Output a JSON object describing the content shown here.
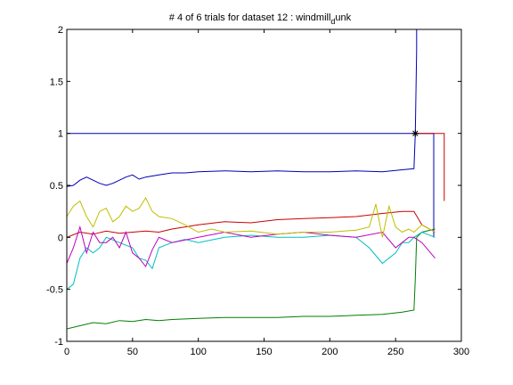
{
  "chart_data": {
    "type": "line",
    "title": "# 4 of 6 trials for dataset 12 : windmill",
    "title_subscript": "d",
    "title_suffix": "unk",
    "xlabel": "",
    "ylabel": "",
    "xlim": [
      0,
      300
    ],
    "ylim": [
      -1,
      2
    ],
    "xticks": [
      0,
      50,
      100,
      150,
      200,
      250,
      300
    ],
    "yticks": [
      -1,
      -0.5,
      0,
      0.5,
      1,
      1.5,
      2
    ],
    "ytick_labels": [
      "-1",
      "-0.5",
      "0",
      "0.5",
      "1",
      "1.5",
      "2"
    ],
    "grid": false,
    "legend": "none",
    "marker": {
      "x": 265,
      "y": 1,
      "symbol": "asterisk",
      "color": "#000000"
    },
    "series": [
      {
        "color": "#0000b3",
        "x": [
          0,
          5,
          10,
          15,
          20,
          25,
          30,
          35,
          40,
          45,
          50,
          55,
          60,
          70,
          80,
          90,
          100,
          120,
          140,
          160,
          180,
          200,
          220,
          240,
          255,
          264,
          265,
          266,
          266
        ],
        "y": [
          0.49,
          0.5,
          0.55,
          0.58,
          0.55,
          0.52,
          0.5,
          0.52,
          0.55,
          0.58,
          0.6,
          0.56,
          0.58,
          0.6,
          0.62,
          0.62,
          0.63,
          0.64,
          0.63,
          0.64,
          0.63,
          0.63,
          0.64,
          0.63,
          0.65,
          0.66,
          1.0,
          1.8,
          2.0
        ]
      },
      {
        "color": "#0000b3",
        "x": [
          0,
          265,
          268,
          272,
          276,
          279,
          279
        ],
        "y": [
          1,
          1,
          1,
          1,
          1,
          1,
          0.0
        ]
      },
      {
        "color": "#cc0000",
        "x": [
          265,
          285,
          287,
          287
        ],
        "y": [
          1,
          1,
          1,
          0.35
        ]
      },
      {
        "color": "#cc0000",
        "x": [
          0,
          10,
          20,
          30,
          40,
          50,
          60,
          70,
          80,
          100,
          120,
          140,
          160,
          180,
          200,
          220,
          240,
          255,
          264,
          270,
          280
        ],
        "y": [
          0.0,
          0.05,
          0.03,
          0.06,
          0.04,
          0.05,
          0.06,
          0.05,
          0.08,
          0.12,
          0.15,
          0.14,
          0.17,
          0.18,
          0.19,
          0.2,
          0.23,
          0.25,
          0.25,
          0.12,
          0.05
        ]
      },
      {
        "color": "#007f00",
        "x": [
          0,
          10,
          20,
          30,
          40,
          50,
          60,
          70,
          80,
          100,
          120,
          140,
          160,
          180,
          200,
          220,
          240,
          255,
          264,
          265,
          266,
          270,
          280
        ],
        "y": [
          -0.88,
          -0.85,
          -0.82,
          -0.83,
          -0.8,
          -0.81,
          -0.79,
          -0.8,
          -0.79,
          -0.78,
          -0.77,
          -0.77,
          -0.77,
          -0.76,
          -0.76,
          -0.75,
          -0.74,
          -0.72,
          -0.7,
          -0.4,
          0.0,
          0.05,
          0.08
        ]
      },
      {
        "color": "#00bfbf",
        "x": [
          0,
          5,
          10,
          15,
          20,
          25,
          30,
          40,
          50,
          55,
          60,
          65,
          70,
          80,
          90,
          100,
          120,
          140,
          160,
          180,
          200,
          220,
          230,
          240,
          250,
          255,
          260,
          264,
          270,
          280
        ],
        "y": [
          -0.5,
          -0.45,
          -0.2,
          -0.1,
          -0.15,
          -0.1,
          0.0,
          -0.05,
          -0.1,
          -0.2,
          -0.22,
          -0.3,
          -0.1,
          -0.05,
          -0.02,
          -0.05,
          0.0,
          0.02,
          0.0,
          0.0,
          0.02,
          0.0,
          -0.1,
          -0.25,
          -0.15,
          -0.05,
          -0.05,
          0.0,
          0.05,
          0.0
        ]
      },
      {
        "color": "#bf00bf",
        "x": [
          0,
          5,
          10,
          15,
          20,
          25,
          30,
          35,
          40,
          45,
          50,
          55,
          60,
          65,
          70,
          80,
          100,
          120,
          140,
          160,
          180,
          200,
          220,
          240,
          250,
          260,
          264,
          270,
          280
        ],
        "y": [
          -0.25,
          -0.1,
          0.1,
          -0.15,
          0.05,
          -0.05,
          -0.05,
          0.0,
          -0.1,
          0.05,
          -0.15,
          -0.2,
          -0.28,
          -0.12,
          0.0,
          -0.05,
          0.0,
          0.05,
          0.0,
          0.03,
          0.05,
          0.02,
          0.0,
          0.05,
          -0.1,
          0.0,
          0.0,
          -0.05,
          -0.2
        ]
      },
      {
        "color": "#bfbf00",
        "x": [
          0,
          5,
          10,
          15,
          20,
          25,
          30,
          35,
          40,
          45,
          50,
          55,
          60,
          65,
          70,
          80,
          90,
          100,
          110,
          120,
          140,
          160,
          180,
          200,
          220,
          230,
          235,
          240,
          245,
          250,
          255,
          260,
          264,
          270,
          280
        ],
        "y": [
          0.2,
          0.3,
          0.35,
          0.2,
          0.1,
          0.25,
          0.28,
          0.15,
          0.2,
          0.3,
          0.25,
          0.28,
          0.38,
          0.25,
          0.2,
          0.18,
          0.12,
          0.05,
          0.08,
          0.05,
          0.06,
          0.03,
          0.05,
          0.05,
          0.07,
          0.1,
          0.32,
          0.0,
          0.3,
          0.1,
          0.05,
          0.08,
          0.05,
          0.12,
          0.05
        ]
      }
    ]
  }
}
